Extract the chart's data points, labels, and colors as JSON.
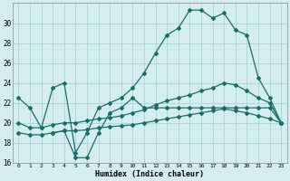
{
  "xlabel": "Humidex (Indice chaleur)",
  "bg_color": "#d4eef0",
  "grid_color": "#aad4d8",
  "line_color": "#1a6e6a",
  "xlim": [
    -0.5,
    23.5
  ],
  "ylim": [
    16,
    32
  ],
  "yticks": [
    16,
    18,
    20,
    22,
    24,
    26,
    28,
    30
  ],
  "xticks": [
    0,
    1,
    2,
    3,
    4,
    5,
    6,
    7,
    8,
    9,
    10,
    11,
    12,
    13,
    14,
    15,
    16,
    17,
    18,
    19,
    20,
    21,
    22,
    23
  ],
  "line1_x": [
    0,
    1,
    2,
    3,
    4,
    5,
    6,
    7,
    8,
    9,
    10,
    11,
    12,
    13,
    14,
    15,
    16,
    17,
    18,
    19,
    20,
    21,
    22,
    23
  ],
  "line1_y": [
    22.5,
    21.5,
    19.5,
    23.5,
    24.0,
    17.0,
    19.0,
    21.5,
    22.0,
    22.5,
    23.5,
    25.0,
    27.0,
    28.8,
    29.5,
    31.3,
    31.3,
    30.5,
    31.0,
    29.3,
    28.8,
    24.5,
    22.5,
    20.0
  ],
  "line2_x": [
    0,
    1,
    2,
    3,
    4,
    5,
    6,
    7,
    8,
    9,
    10,
    11,
    12,
    13,
    14,
    15,
    16,
    17,
    18,
    19,
    20,
    21,
    22,
    23
  ],
  "line2_y": [
    20.0,
    19.5,
    19.5,
    19.8,
    20.0,
    20.0,
    20.2,
    20.4,
    20.5,
    20.7,
    21.0,
    21.3,
    21.8,
    22.2,
    22.5,
    22.8,
    23.2,
    23.5,
    24.0,
    23.8,
    23.2,
    22.5,
    22.0,
    20.0
  ],
  "line3_x": [
    0,
    1,
    2,
    3,
    4,
    5,
    6,
    7,
    8,
    9,
    10,
    11,
    12,
    13,
    14,
    15,
    16,
    17,
    18,
    19,
    20,
    21,
    22,
    23
  ],
  "line3_y": [
    19.0,
    18.8,
    18.8,
    19.0,
    19.2,
    19.2,
    19.3,
    19.5,
    19.6,
    19.7,
    19.8,
    20.0,
    20.2,
    20.4,
    20.6,
    20.8,
    21.0,
    21.2,
    21.4,
    21.2,
    21.0,
    20.7,
    20.4,
    20.0
  ],
  "line4_x": [
    3,
    4,
    5,
    6,
    7,
    8,
    9,
    10,
    11,
    12,
    13,
    14,
    15,
    16,
    17,
    18,
    19,
    20,
    21,
    22,
    23
  ],
  "line4_y": [
    19.0,
    19.2,
    16.5,
    16.5,
    19.0,
    21.0,
    21.5,
    22.5,
    21.5,
    21.5,
    21.5,
    21.5,
    21.5,
    21.5,
    21.5,
    21.5,
    21.5,
    21.5,
    21.5,
    21.5,
    20.0
  ]
}
